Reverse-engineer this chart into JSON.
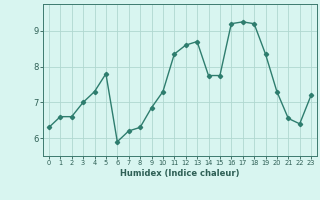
{
  "x": [
    0,
    1,
    2,
    3,
    4,
    5,
    6,
    7,
    8,
    9,
    10,
    11,
    12,
    13,
    14,
    15,
    16,
    17,
    18,
    19,
    20,
    21,
    22,
    23
  ],
  "y": [
    6.3,
    6.6,
    6.6,
    7.0,
    7.3,
    7.8,
    5.9,
    6.2,
    6.3,
    6.85,
    7.3,
    8.35,
    8.6,
    8.7,
    7.75,
    7.75,
    9.2,
    9.25,
    9.2,
    8.35,
    7.3,
    6.55,
    6.4,
    7.2
  ],
  "line_color": "#2e7d6e",
  "marker": "D",
  "marker_size": 2.2,
  "bg_color": "#d8f5f0",
  "grid_color": "#b0d8d0",
  "axis_color": "#3d7a6e",
  "xlabel": "Humidex (Indice chaleur)",
  "ylim": [
    5.5,
    9.75
  ],
  "xlim": [
    -0.5,
    23.5
  ],
  "yticks": [
    6,
    7,
    8,
    9
  ],
  "xticks": [
    0,
    1,
    2,
    3,
    4,
    5,
    6,
    7,
    8,
    9,
    10,
    11,
    12,
    13,
    14,
    15,
    16,
    17,
    18,
    19,
    20,
    21,
    22,
    23
  ],
  "font_color": "#2e5f55",
  "linewidth": 1.0,
  "xlabel_fontsize": 6.0,
  "xtick_fontsize": 4.8,
  "ytick_fontsize": 6.0
}
